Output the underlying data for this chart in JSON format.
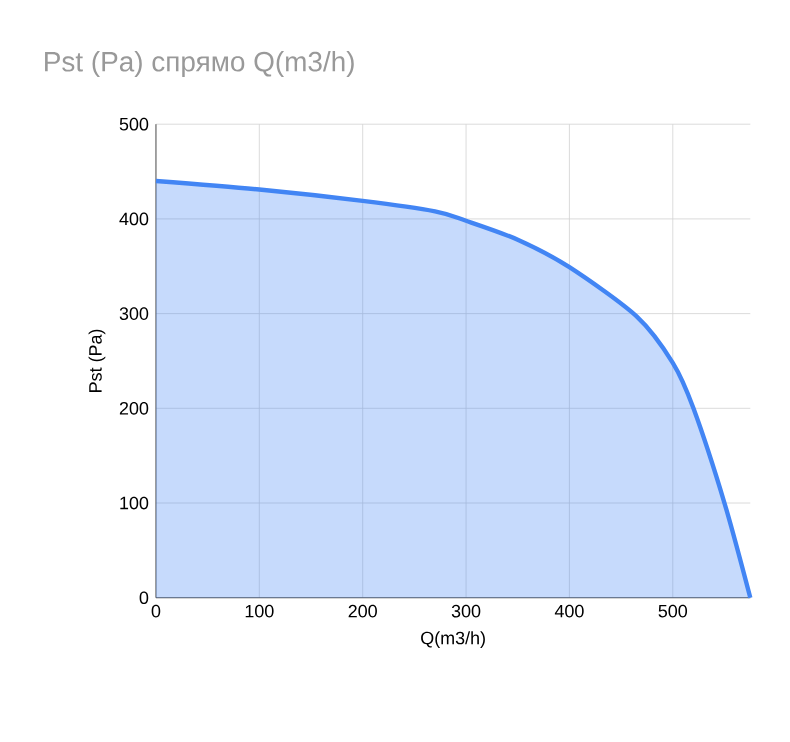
{
  "chart_data": {
    "type": "area",
    "title": "Pst (Pa) спрямо Q(m3/h)",
    "xlabel": "Q(m3/h)",
    "ylabel": "Pst (Pa)",
    "x": [
      0,
      100,
      200,
      270,
      300,
      350,
      400,
      465,
      500,
      520,
      550,
      575
    ],
    "series": [
      {
        "color": "#4285f4",
        "values": [
          440,
          431,
          419,
          408,
          398,
          378,
          349,
          297,
          248,
          200,
          100,
          0
        ]
      }
    ],
    "xlim": [
      0,
      575
    ],
    "ylim": [
      0,
      500
    ],
    "xticks": [
      0,
      100,
      200,
      300,
      400,
      500
    ],
    "yticks": [
      0,
      100,
      200,
      300,
      400,
      500
    ],
    "grid": true
  }
}
